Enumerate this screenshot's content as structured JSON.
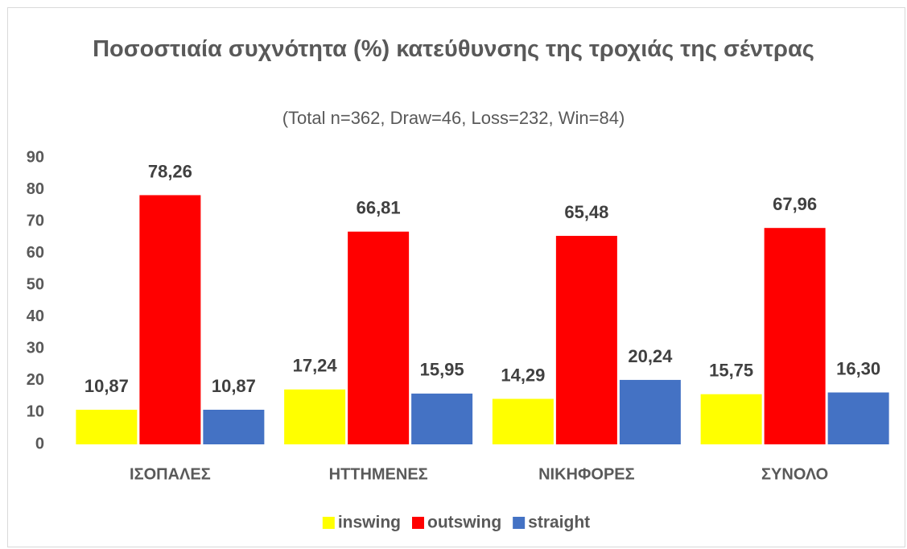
{
  "chart_data": {
    "type": "bar",
    "title": "Ποσοστιαία συχνότητα (%) κατεύθυνσης της τροχιάς της σέντρας",
    "subtitle": "(Total n=362, Draw=46, Loss=232, Win=84)",
    "categories": [
      "ΙΣΟΠΑΛΕΣ",
      "ΗΤΤΗΜΕΝΕΣ",
      "ΝΙΚΗΦΟΡΕΣ",
      "ΣΥΝΟΛΟ"
    ],
    "series": [
      {
        "name": "inswing",
        "color": "#ffff00",
        "values": [
          10.87,
          17.24,
          14.29,
          15.75
        ],
        "value_labels": [
          "10,87",
          "17,24",
          "14,29",
          "15,75"
        ]
      },
      {
        "name": "outswing",
        "color": "#ff0000",
        "values": [
          78.26,
          66.81,
          65.48,
          67.96
        ],
        "value_labels": [
          "78,26",
          "66,81",
          "65,48",
          "67,96"
        ]
      },
      {
        "name": "straight",
        "color": "#4472c4",
        "values": [
          10.87,
          15.95,
          20.24,
          16.3
        ],
        "value_labels": [
          "10,87",
          "15,95",
          "20,24",
          "16,30"
        ]
      }
    ],
    "ylim": [
      0,
      90
    ],
    "yticks": [
      0,
      10,
      20,
      30,
      40,
      50,
      60,
      70,
      80,
      90
    ],
    "grid": false,
    "legend": "bottom"
  }
}
